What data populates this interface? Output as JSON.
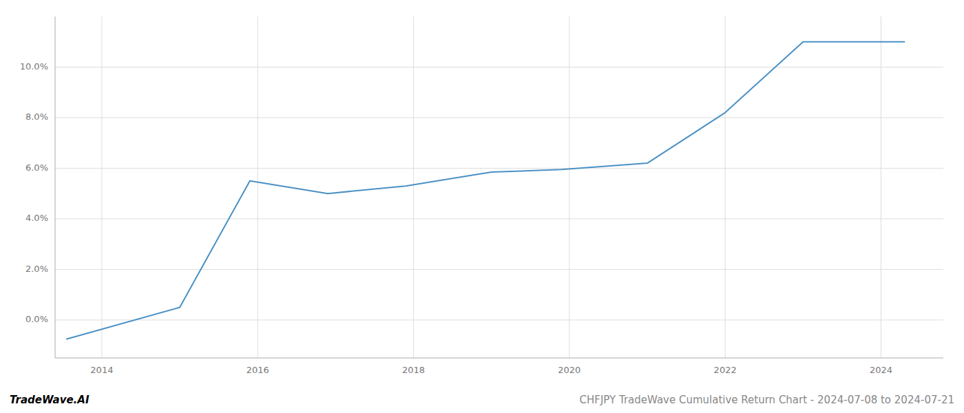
{
  "chart_data": {
    "type": "line",
    "title": "CHFJPY TradeWave Cumulative Return Chart - 2024-07-08 to 2024-07-21",
    "annotations": [
      "TradeWave.AI"
    ],
    "x": [
      2013.55,
      2015.0,
      2015.9,
      2016.9,
      2017.9,
      2019.0,
      2019.9,
      2021.0,
      2022.0,
      2023.0,
      2024.3
    ],
    "values": [
      -0.75,
      0.5,
      5.5,
      5.0,
      5.3,
      5.85,
      5.95,
      6.2,
      8.2,
      11.0,
      11.0
    ],
    "color": "#4a90c4",
    "xlim": [
      2013.4,
      2024.8
    ],
    "ylim": [
      -1.5,
      12.0
    ],
    "xticks": [
      2014,
      2016,
      2018,
      2020,
      2022,
      2024
    ],
    "yticks": [
      {
        "value": 0.0,
        "label": "0.0%"
      },
      {
        "value": 2.0,
        "label": "2.0%"
      },
      {
        "value": 4.0,
        "label": "4.0%"
      },
      {
        "value": 6.0,
        "label": "6.0%"
      },
      {
        "value": 8.0,
        "label": "8.0%"
      },
      {
        "value": 10.0,
        "label": "10.0%"
      }
    ],
    "grid": true
  }
}
